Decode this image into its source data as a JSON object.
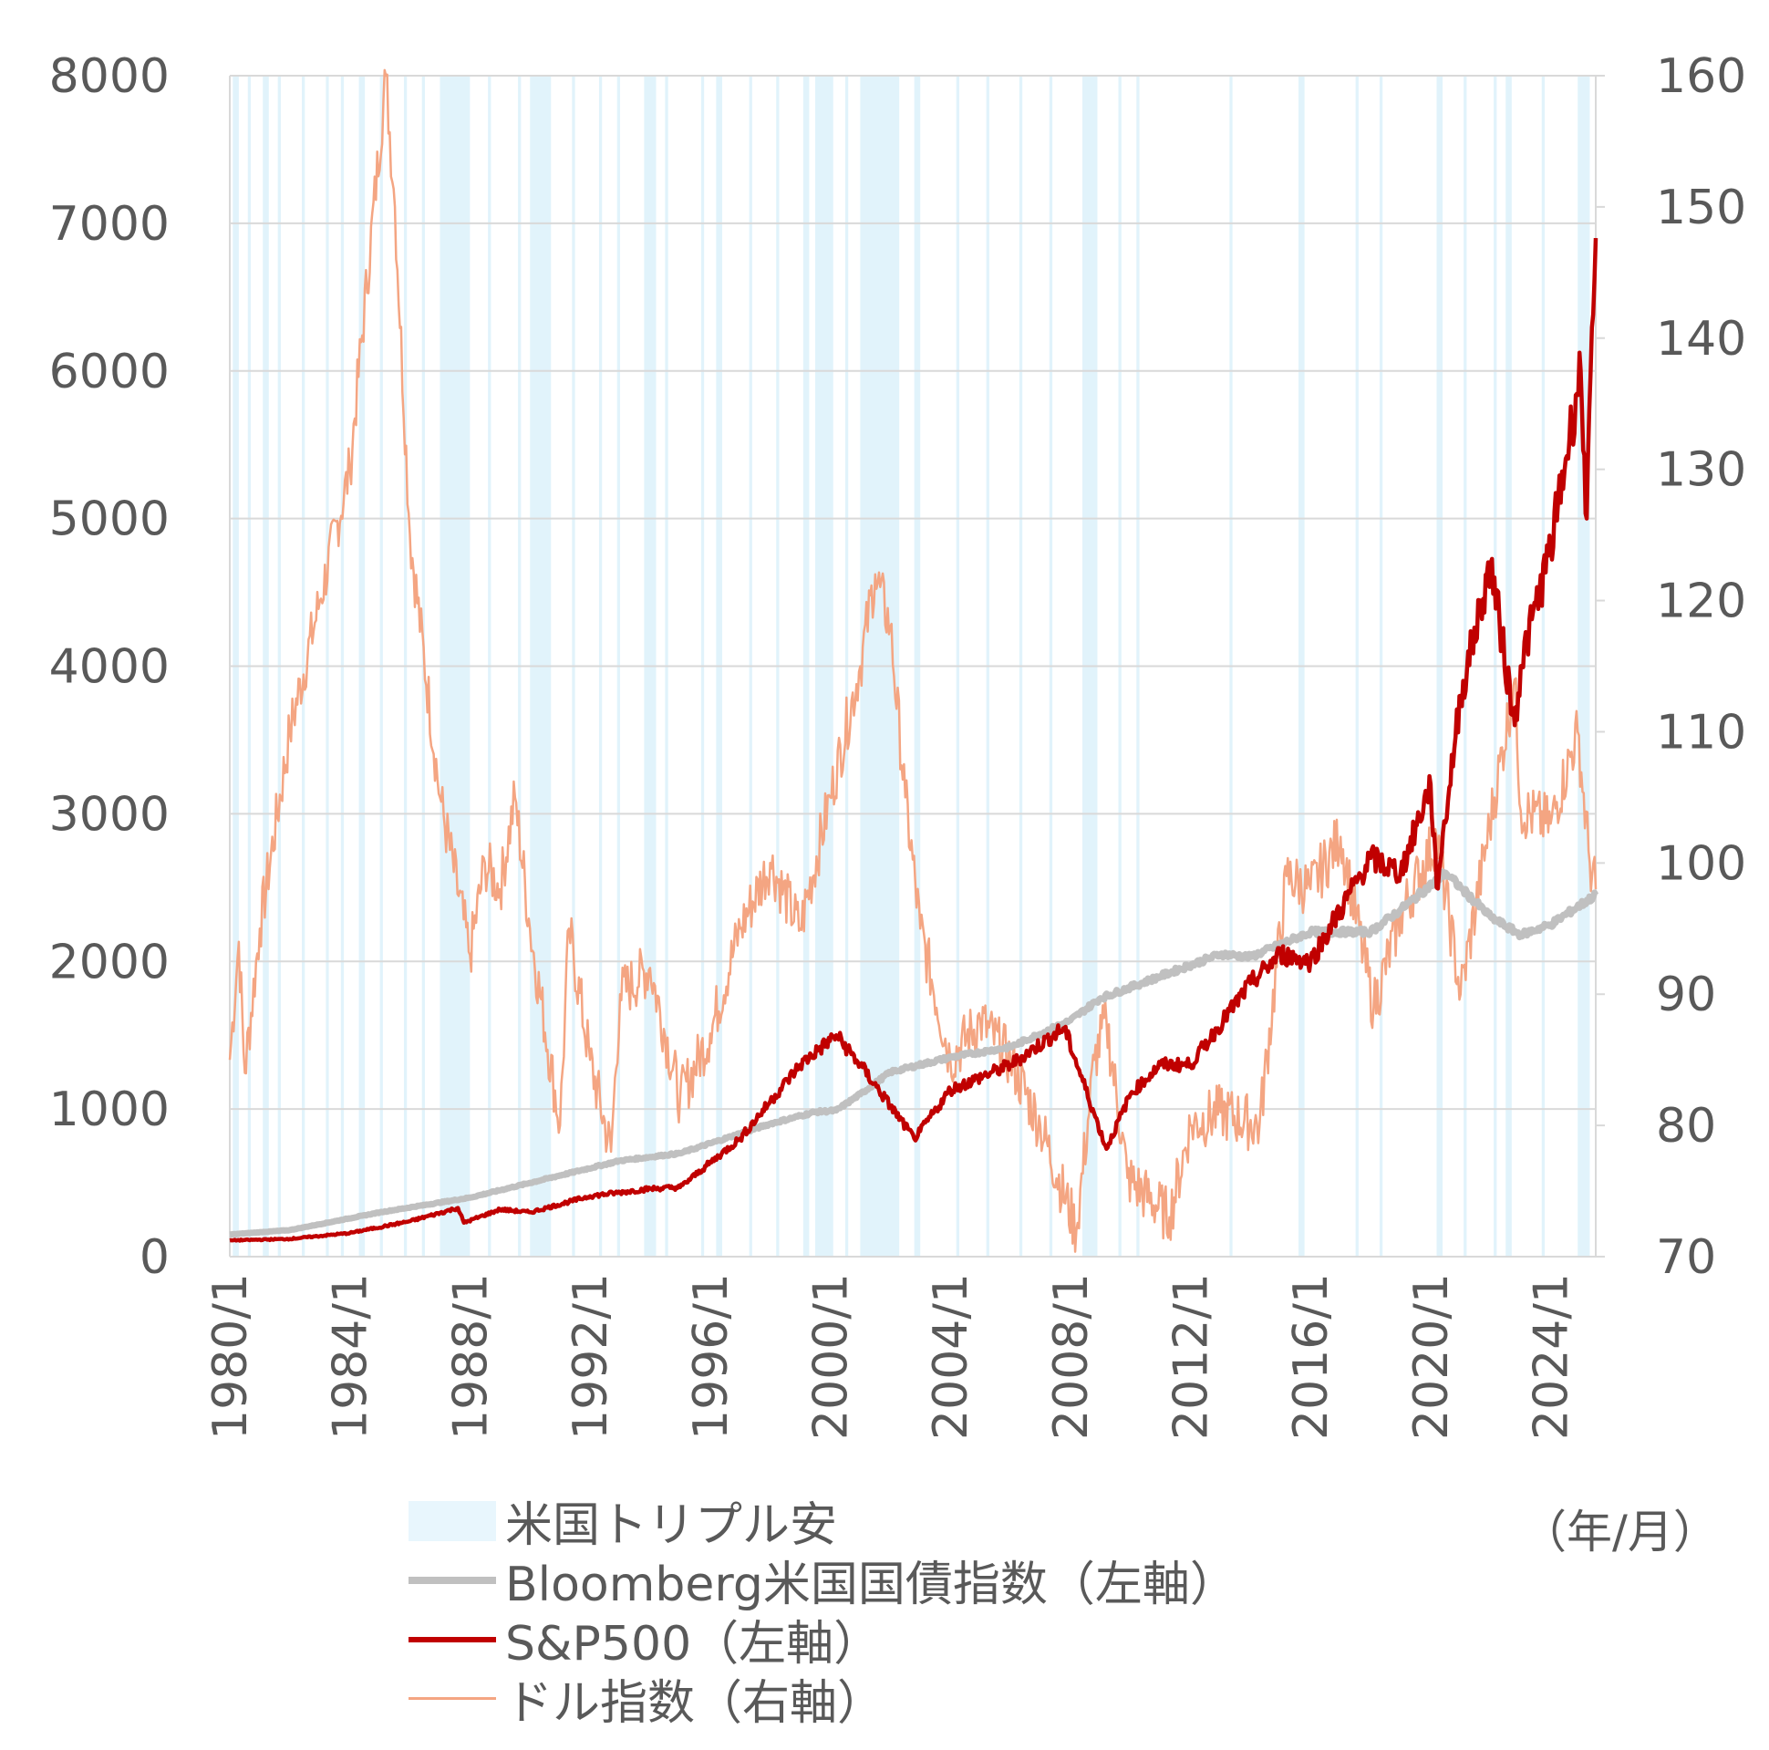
{
  "chart_data": {
    "type": "line",
    "title": "",
    "xlabel": "",
    "x_unit_label": "（年/月）",
    "x_tick_labels": [
      "1980/1",
      "1984/1",
      "1988/1",
      "1992/1",
      "1996/1",
      "2000/1",
      "2004/1",
      "2008/1",
      "2012/1",
      "2016/1",
      "2020/1",
      "2024/1"
    ],
    "xlim": [
      1980.0,
      2025.5
    ],
    "y_left": {
      "range": [
        0,
        8000
      ],
      "ticks": [
        "0",
        "1000",
        "2000",
        "3000",
        "4000",
        "5000",
        "6000",
        "7000",
        "8000"
      ]
    },
    "y_right": {
      "range": [
        70,
        160
      ],
      "ticks": [
        "70",
        "80",
        "90",
        "100",
        "110",
        "120",
        "130",
        "140",
        "150",
        "160"
      ]
    },
    "grid": true,
    "legend_placement": "bottom",
    "shaded_periods": {
      "name": "米国トリプル安",
      "color": "#daf0fa",
      "ranges": [
        [
          1980.1,
          1980.3
        ],
        [
          1980.6,
          1980.7
        ],
        [
          1981.1,
          1981.3
        ],
        [
          1981.6,
          1981.7
        ],
        [
          1982.4,
          1982.5
        ],
        [
          1983.2,
          1983.3
        ],
        [
          1983.7,
          1983.8
        ],
        [
          1984.3,
          1984.5
        ],
        [
          1985.0,
          1985.1
        ],
        [
          1985.8,
          1985.9
        ],
        [
          1986.4,
          1986.5
        ],
        [
          1987.0,
          1988.0
        ],
        [
          1988.6,
          1988.7
        ],
        [
          1989.6,
          1989.7
        ],
        [
          1990.0,
          1990.7
        ],
        [
          1991.4,
          1991.5
        ],
        [
          1992.3,
          1992.4
        ],
        [
          1992.9,
          1993.0
        ],
        [
          1993.8,
          1994.2
        ],
        [
          1994.5,
          1994.6
        ],
        [
          1995.7,
          1995.8
        ],
        [
          1996.2,
          1996.4
        ],
        [
          1997.3,
          1997.4
        ],
        [
          1998.2,
          1998.3
        ],
        [
          1999.1,
          1999.3
        ],
        [
          1999.5,
          2000.1
        ],
        [
          2000.5,
          2000.6
        ],
        [
          2001.0,
          2002.3
        ],
        [
          2002.8,
          2003.0
        ],
        [
          2004.2,
          2004.3
        ],
        [
          2005.2,
          2005.3
        ],
        [
          2006.3,
          2006.4
        ],
        [
          2007.3,
          2007.4
        ],
        [
          2008.4,
          2008.9
        ],
        [
          2009.6,
          2009.7
        ],
        [
          2010.2,
          2010.3
        ],
        [
          2013.3,
          2013.4
        ],
        [
          2015.6,
          2015.8
        ],
        [
          2017.5,
          2017.6
        ],
        [
          2018.3,
          2018.4
        ],
        [
          2020.2,
          2020.4
        ],
        [
          2021.1,
          2021.2
        ],
        [
          2022.1,
          2022.2
        ],
        [
          2022.5,
          2022.7
        ],
        [
          2023.7,
          2023.8
        ],
        [
          2024.9,
          2025.3
        ]
      ]
    },
    "series": [
      {
        "name": "Bloomberg米国国債指数（左軸）",
        "axis": "left",
        "color": "#c0c0c0",
        "x": [
          1980,
          1982,
          1985,
          1988,
          1990,
          1993,
          1995,
          1998,
          1999.5,
          2000.2,
          2001,
          2002,
          2004,
          2006,
          2008,
          2009,
          2011,
          2013,
          2014,
          2016,
          2018,
          2019,
          2020.5,
          2021,
          2022,
          2023,
          2024,
          2025.5
        ],
        "y": [
          150,
          180,
          300,
          400,
          500,
          650,
          700,
          900,
          980,
          990,
          1100,
          1250,
          1350,
          1420,
          1600,
          1750,
          1900,
          2050,
          2030,
          2200,
          2200,
          2350,
          2600,
          2500,
          2300,
          2180,
          2250,
          2450
        ]
      },
      {
        "name": "S&P500（左軸）",
        "axis": "left",
        "color": "#c00000",
        "x": [
          1980,
          1982,
          1984,
          1986,
          1987.6,
          1987.8,
          1989,
          1990,
          1992,
          1994,
          1995,
          1997,
          1998,
          1999,
          2000.2,
          2001,
          2002.8,
          2003,
          2004,
          2006,
          2007.8,
          2009.2,
          2010,
          2011,
          2012,
          2014,
          2015,
          2016,
          2018,
          2019,
          2020,
          2020.2,
          2021,
          2022,
          2022.8,
          2023,
          2024,
          2025,
          2025.2,
          2025.5
        ],
        "y": [
          110,
          120,
          160,
          240,
          330,
          230,
          320,
          300,
          410,
          460,
          470,
          800,
          1050,
          1300,
          1500,
          1300,
          800,
          850,
          1130,
          1300,
          1550,
          730,
          1100,
          1300,
          1300,
          1850,
          2050,
          2000,
          2700,
          2600,
          3200,
          2500,
          3800,
          4700,
          3600,
          4000,
          4800,
          6000,
          5000,
          6900
        ]
      },
      {
        "name": "ドル指数（右軸）",
        "axis": "right",
        "color": "#f4a582",
        "x": [
          1980,
          1980.3,
          1980.5,
          1981,
          1982,
          1983,
          1984,
          1985.2,
          1985.5,
          1986,
          1987,
          1988,
          1988.5,
          1989,
          1989.5,
          1990,
          1991,
          1991.3,
          1992,
          1992.7,
          1993,
          1994,
          1995,
          1996,
          1997,
          1998,
          1999,
          2000,
          2001,
          2001.5,
          2002,
          2002.5,
          2003,
          2004,
          2005,
          2006,
          2007,
          2008.2,
          2008.8,
          2009.2,
          2009.9,
          2011.3,
          2012,
          2013,
          2014.3,
          2015.2,
          2016,
          2017,
          2018.1,
          2019,
          2020.2,
          2021,
          2022.8,
          2023,
          2024,
          2024.9,
          2025.3,
          2025.5
        ],
        "y": [
          85,
          94,
          84,
          95,
          110,
          120,
          130,
          160,
          150,
          125,
          105,
          93,
          100,
          98,
          105,
          95,
          80,
          95,
          85,
          78,
          90,
          92,
          82,
          87,
          95,
          100,
          95,
          105,
          115,
          122,
          118,
          105,
          95,
          85,
          88,
          85,
          80,
          72,
          85,
          88,
          76,
          73,
          80,
          81,
          80,
          99,
          98,
          102,
          89,
          96,
          102,
          90,
          114,
          104,
          103,
          110,
          100,
          98
        ]
      }
    ]
  },
  "legend": {
    "items": [
      {
        "label": "米国トリプル安",
        "color": "#e8f6fd"
      },
      {
        "label": "Bloomberg米国国債指数（左軸）",
        "color": "#c0c0c0"
      },
      {
        "label": "S&P500（左軸）",
        "color": "#c00000"
      },
      {
        "label": "ドル指数（右軸）",
        "color": "#f4a582"
      }
    ]
  }
}
